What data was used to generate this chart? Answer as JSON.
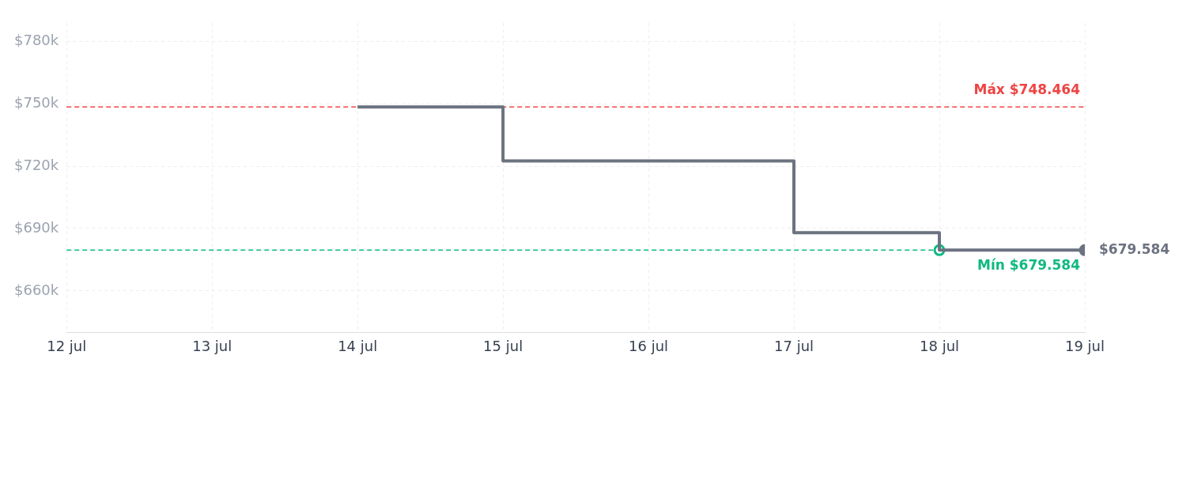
{
  "chart_data": {
    "type": "step",
    "series": [
      {
        "type": "step",
        "color": "#6b7280",
        "x": [
          "--07-14",
          "--07-15",
          "--07-17",
          "--07-18",
          "--07-19"
        ],
        "values": [
          748464,
          722500,
          688000,
          679584,
          679584
        ],
        "marker": "none"
      },
      {
        "type": "scatter",
        "color": "#10b981",
        "x": [
          "--07-18"
        ],
        "values": [
          679584
        ],
        "marker": "circle"
      },
      {
        "type": "scatter",
        "color": "#6b7280",
        "x": [
          "--07-19"
        ],
        "values": [
          679584
        ],
        "marker": "circle"
      }
    ],
    "xlim": [
      "--07-12",
      "--07-19"
    ],
    "xticks": [
      {
        "value": "--07-12",
        "label": "12 jul"
      },
      {
        "value": "--07-13",
        "label": "13 jul"
      },
      {
        "value": "--07-14",
        "label": "14 jul"
      },
      {
        "value": "--07-15",
        "label": "15 jul"
      },
      {
        "value": "--07-16",
        "label": "16 jul"
      },
      {
        "value": "--07-17",
        "label": "17 jul"
      },
      {
        "value": "--07-18",
        "label": "18 jul"
      },
      {
        "value": "--07-19",
        "label": "19 jul"
      }
    ],
    "ylim": [
      640000,
      789000
    ],
    "yticks": [
      {
        "value": 660000,
        "label": "$660k"
      },
      {
        "value": 690000,
        "label": "$690k"
      },
      {
        "value": 720000,
        "label": "$720k"
      },
      {
        "value": 750000,
        "label": "$750k"
      },
      {
        "value": 780000,
        "label": "$780k"
      }
    ],
    "ref_lines": [
      {
        "axis": "y",
        "value": 748464,
        "label": "Máx $748.464",
        "color": "#ef4444",
        "line_style": "dashed"
      },
      {
        "axis": "y",
        "value": 679584,
        "label": "Mín $679.584",
        "color": "#10b981",
        "line_style": "dashed"
      }
    ],
    "annotations": [
      {
        "text": "$679.584",
        "x": "--07-19",
        "y": 679584
      }
    ],
    "grid": true,
    "legend": false
  }
}
